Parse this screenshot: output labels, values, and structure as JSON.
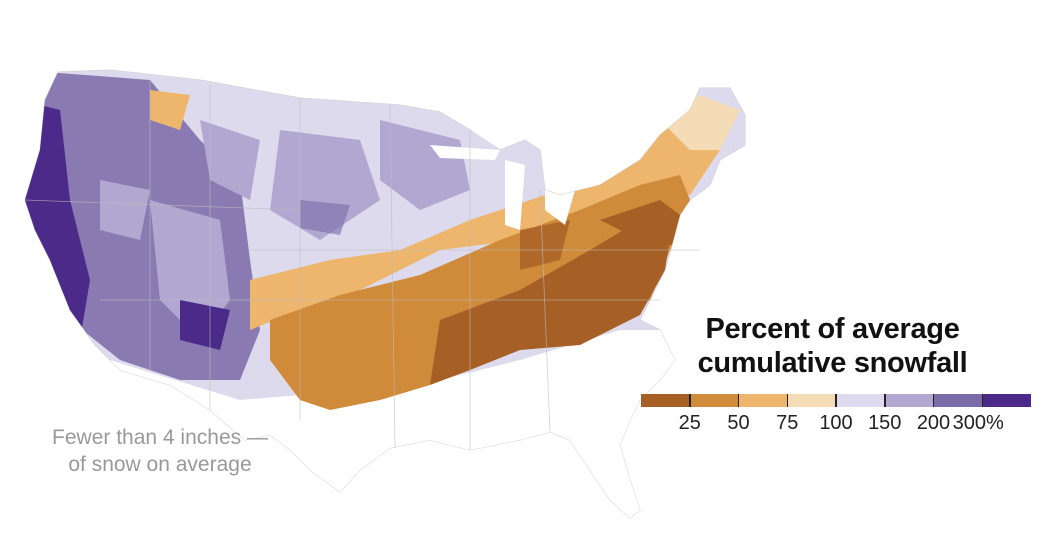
{
  "legend": {
    "title_line1": "Percent of average",
    "title_line2": "cumulative snowfall",
    "colors": [
      "#a65f25",
      "#cf8a3a",
      "#eeb56d",
      "#f3dcb6",
      "#dcdaec",
      "#b2a7d1",
      "#7a6aa8",
      "#4b2a8a"
    ],
    "tick_labels": [
      "25",
      "50",
      "75",
      "100",
      "150",
      "200",
      "300%"
    ]
  },
  "annotation": {
    "line1": "Fewer than 4 inches —",
    "line2": "of snow on average"
  }
}
